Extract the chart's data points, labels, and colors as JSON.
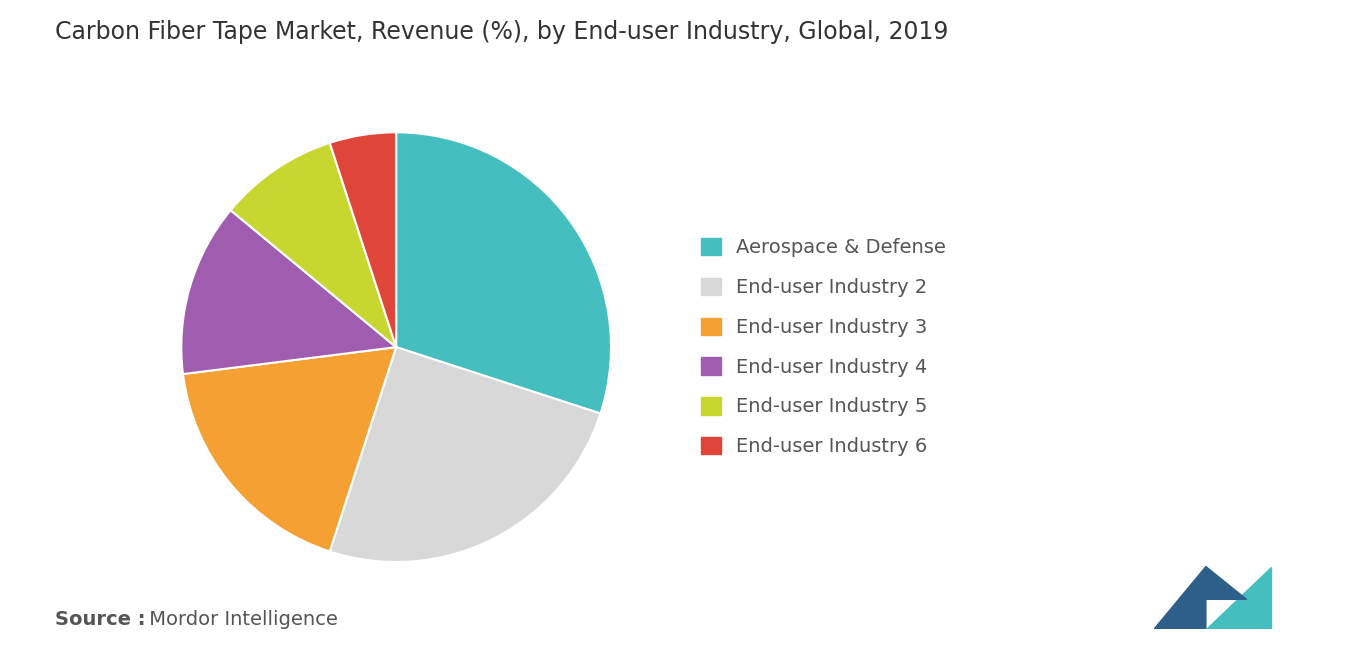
{
  "title": "Carbon Fiber Tape Market, Revenue (%), by End-user Industry, Global, 2019",
  "labels": [
    "Aerospace & Defense",
    "End-user Industry 2",
    "End-user Industry 3",
    "End-user Industry 4",
    "End-user Industry 5",
    "End-user Industry 6"
  ],
  "sizes": [
    30,
    25,
    18,
    13,
    9,
    5
  ],
  "colors": [
    "#45bec0",
    "#d8d8d8",
    "#f5a033",
    "#a05db0",
    "#c8d630",
    "#e0453a"
  ],
  "startangle": 90,
  "source_bold": "Source :",
  "source_normal": " Mordor Intelligence",
  "background_color": "#ffffff",
  "title_fontsize": 17,
  "legend_fontsize": 14,
  "source_fontsize": 14,
  "text_color": "#555555",
  "logo_left_color": "#2e5f8a",
  "logo_right_color": "#45bec0"
}
